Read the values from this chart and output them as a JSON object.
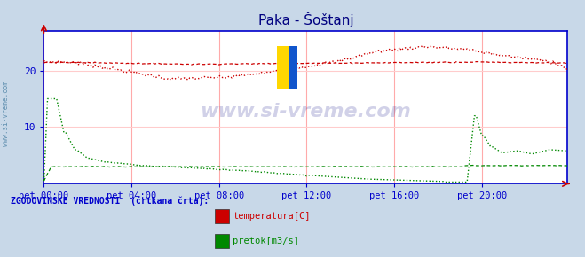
{
  "title": "Paka - Šoštanj",
  "title_color": "#000080",
  "bg_color": "#c8d8e8",
  "plot_bg_color": "#ffffff",
  "grid_color_v": "#ffaaaa",
  "grid_color_h": "#ffcccc",
  "axis_color": "#0000cc",
  "watermark_text": "www.si-vreme.com",
  "watermark_color": "#000080",
  "side_text": "www.si-vreme.com",
  "tick_label_color": "#0000aa",
  "xtick_labels": [
    "pet 00:00",
    "pet 04:00",
    "pet 08:00",
    "pet 12:00",
    "pet 16:00",
    "pet 20:00"
  ],
  "ylim": [
    0,
    27
  ],
  "legend_text": "ZGODOVINSKE VREDNOSTI  (črtkana črta):",
  "legend_color": "#0000cc",
  "legend_items": [
    "temperatura[C]",
    "pretok[m3/s]"
  ],
  "legend_item_colors": [
    "#cc0000",
    "#008800"
  ],
  "temp_color": "#cc0000",
  "pretok_color": "#008800"
}
